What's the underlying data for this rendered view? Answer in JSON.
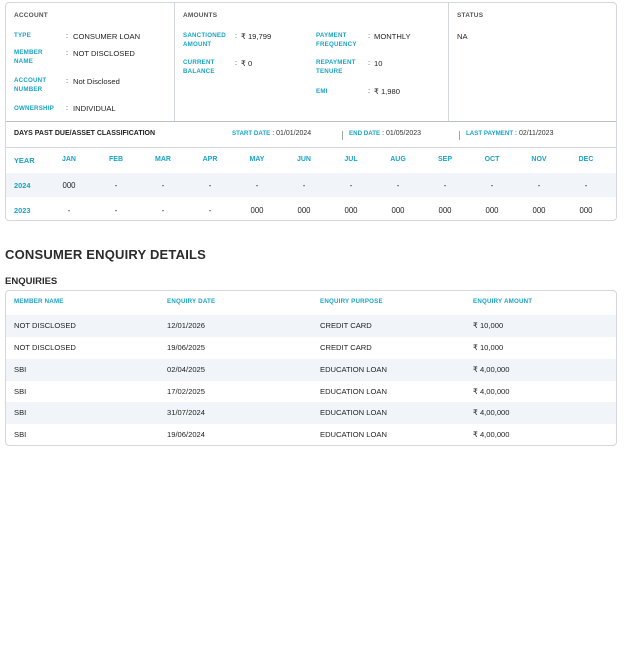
{
  "account": {
    "title": "ACCOUNT",
    "fields": [
      {
        "label": "TYPE",
        "value": "CONSUMER LOAN"
      },
      {
        "label": "MEMBER NAME",
        "value": "NOT DISCLOSED"
      },
      {
        "label": "ACCOUNT NUMBER",
        "value": "Not Disclosed"
      },
      {
        "label": "OWNERSHIP",
        "value": "INDIVIDUAL"
      }
    ]
  },
  "amounts": {
    "title": "AMOUNTS",
    "left": [
      {
        "label": "SANCTIONED AMOUNT",
        "value": "₹ 19,799"
      },
      {
        "label": "CURRENT BALANCE",
        "value": "₹ 0"
      }
    ],
    "right": [
      {
        "label": "PAYMENT FREQUENCY",
        "value": "MONTHLY"
      },
      {
        "label": "REPAYMENT TENURE",
        "value": "10"
      },
      {
        "label": "EMI",
        "value": "₹ 1,980"
      }
    ]
  },
  "status": {
    "title": "STATUS",
    "value": "NA"
  },
  "dpd": {
    "title": "DAYS PAST DUE/ASSET CLASSIFICATION",
    "start_label": "START DATE",
    "start_value": "01/01/2024",
    "end_label": "END DATE",
    "end_value": "01/05/2023",
    "last_label": "LAST PAYMENT",
    "last_value": "02/11/2023",
    "headers": [
      "YEAR",
      "JAN",
      "FEB",
      "MAR",
      "APR",
      "MAY",
      "JUN",
      "JUL",
      "AUG",
      "SEP",
      "OCT",
      "NOV",
      "DEC"
    ],
    "rows": [
      {
        "year": "2024",
        "values": [
          "000",
          "-",
          "-",
          "-",
          "-",
          "-",
          "-",
          "-",
          "-",
          "-",
          "-",
          "-"
        ]
      },
      {
        "year": "2023",
        "values": [
          "-",
          "-",
          "-",
          "-",
          "000",
          "000",
          "000",
          "000",
          "000",
          "000",
          "000",
          "000"
        ]
      }
    ]
  },
  "enquiry_section": {
    "title": "CONSUMER ENQUIRY DETAILS",
    "subtitle": "ENQUIRIES",
    "headers": [
      "MEMBER NAME",
      "ENQUIRY DATE",
      "ENQUIRY PURPOSE",
      "ENQUIRY AMOUNT"
    ],
    "rows": [
      [
        "NOT DISCLOSED",
        "12/01/2026",
        "CREDIT CARD",
        "₹ 10,000"
      ],
      [
        "NOT DISCLOSED",
        "19/06/2025",
        "CREDIT CARD",
        "₹ 10,000"
      ],
      [
        "SBI",
        "02/04/2025",
        "EDUCATION LOAN",
        "₹ 4,00,000"
      ],
      [
        "SBI",
        "17/02/2025",
        "EDUCATION LOAN",
        "₹ 4,00,000"
      ],
      [
        "SBI",
        "31/07/2024",
        "EDUCATION LOAN",
        "₹ 4,00,000"
      ],
      [
        "SBI",
        "19/06/2024",
        "EDUCATION LOAN",
        "₹ 4,00,000"
      ]
    ]
  },
  "colors": {
    "accent": "#1aa3c4",
    "border": "#d4d8dd",
    "row_shade": "#f1f4f8"
  }
}
